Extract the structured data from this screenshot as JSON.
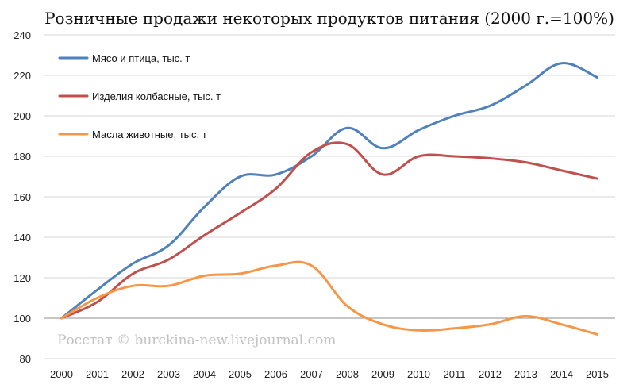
{
  "chart_data": {
    "type": "line",
    "title": "Розничные продажи некоторых продуктов питания (2000 г.=100%)",
    "x": [
      "2000",
      "2001",
      "2002",
      "2003",
      "2004",
      "2005",
      "2006",
      "2007",
      "2008",
      "2009",
      "2010",
      "2011",
      "2012",
      "2013",
      "2014",
      "2015"
    ],
    "ylim": [
      80,
      240
    ],
    "yticks": [
      80,
      100,
      120,
      140,
      160,
      180,
      200,
      220,
      240
    ],
    "grid": true,
    "legend_position": "top-left",
    "series": [
      {
        "name": "Мясо и птица, тыс. т",
        "color": "#4f81bd",
        "values": [
          100,
          114,
          127,
          136,
          155,
          170,
          171,
          180,
          194,
          184,
          193,
          200,
          205,
          215,
          226,
          219
        ]
      },
      {
        "name": "Изделия колбасные, тыс. т",
        "color": "#c0504d",
        "values": [
          100,
          108,
          122,
          129,
          141,
          152,
          164,
          182,
          186,
          171,
          180,
          180,
          179,
          177,
          173,
          169
        ]
      },
      {
        "name": "Масла животные, тыс. т",
        "color": "#f79646",
        "values": [
          100,
          110,
          116,
          116,
          121,
          122,
          126,
          126,
          106,
          97,
          94,
          95,
          97,
          101,
          97,
          92
        ]
      }
    ]
  },
  "watermark": "Росстат © burckina-new.livejournal.com"
}
